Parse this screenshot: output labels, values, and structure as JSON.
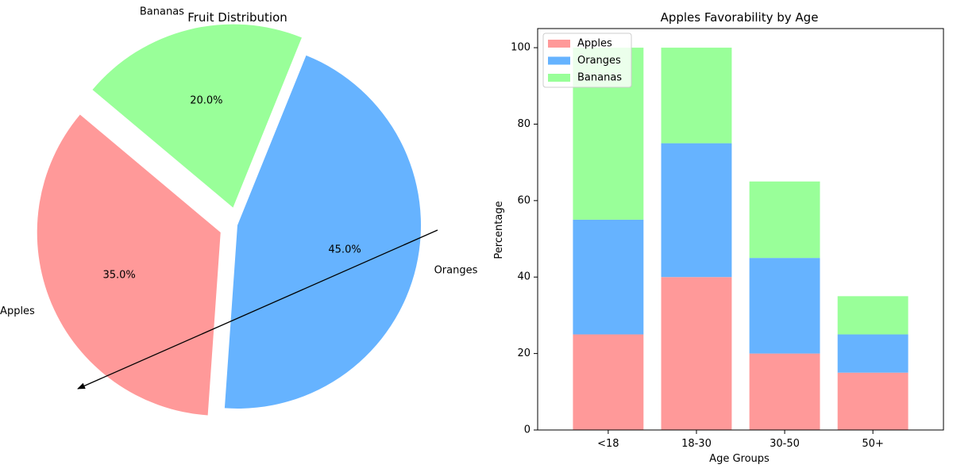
{
  "chart_data": [
    {
      "type": "pie",
      "title": "Fruit Distribution",
      "labels": [
        "Apples",
        "Oranges",
        "Bananas"
      ],
      "values": [
        35,
        45,
        20
      ],
      "autopct_labels": [
        "35.0%",
        "45.0%",
        "20.0%"
      ],
      "explode": [
        0.1,
        0,
        0.1
      ],
      "start_angle_deg": 140,
      "colors": [
        "#ff9999",
        "#66b3ff",
        "#99ff99"
      ],
      "annotation": {
        "type": "arrow",
        "color": "#000000"
      }
    },
    {
      "type": "bar",
      "stacked": true,
      "title": "Apples Favorability by Age",
      "xlabel": "Age Groups",
      "ylabel": "Percentage",
      "categories": [
        "<18",
        "18-30",
        "30-50",
        "50+"
      ],
      "series": [
        {
          "name": "Apples",
          "color": "#ff9999",
          "values": [
            25,
            40,
            20,
            15
          ]
        },
        {
          "name": "Oranges",
          "color": "#66b3ff",
          "values": [
            30,
            35,
            25,
            10
          ]
        },
        {
          "name": "Bananas",
          "color": "#99ff99",
          "values": [
            45,
            25,
            20,
            10
          ]
        }
      ],
      "ylim": [
        0,
        105
      ],
      "yticks": [
        0,
        20,
        40,
        60,
        80,
        100
      ],
      "legend": "upper-left",
      "grid": false
    }
  ]
}
